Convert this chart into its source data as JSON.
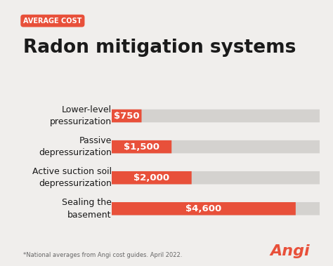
{
  "background_color": "#f0eeec",
  "badge_color": "#e8503a",
  "bar_bg_color": "#d4d2cf",
  "bar_fg_color": "#e8503a",
  "badge_text_color": "#ffffff",
  "title_text": "Radon mitigation systems",
  "subtitle_text": "AVERAGE COST",
  "footer_text": "*National averages from Angi cost guides. April 2022.",
  "angi_text": "Angi",
  "categories": [
    "Lower-level\npressurization",
    "Passive\ndepressurization",
    "Active suction soil\ndepressurization",
    "Sealing the\nbasement"
  ],
  "values": [
    750,
    1500,
    2000,
    4600
  ],
  "labels": [
    "$750",
    "$1,500",
    "$2,000",
    "$4,600"
  ],
  "max_value": 5200,
  "bar_height": 0.42,
  "label_fontsize": 9.5,
  "title_fontsize": 19,
  "cat_fontsize": 9,
  "subtitle_fontsize": 7,
  "footer_fontsize": 6,
  "angi_fontsize": 16
}
